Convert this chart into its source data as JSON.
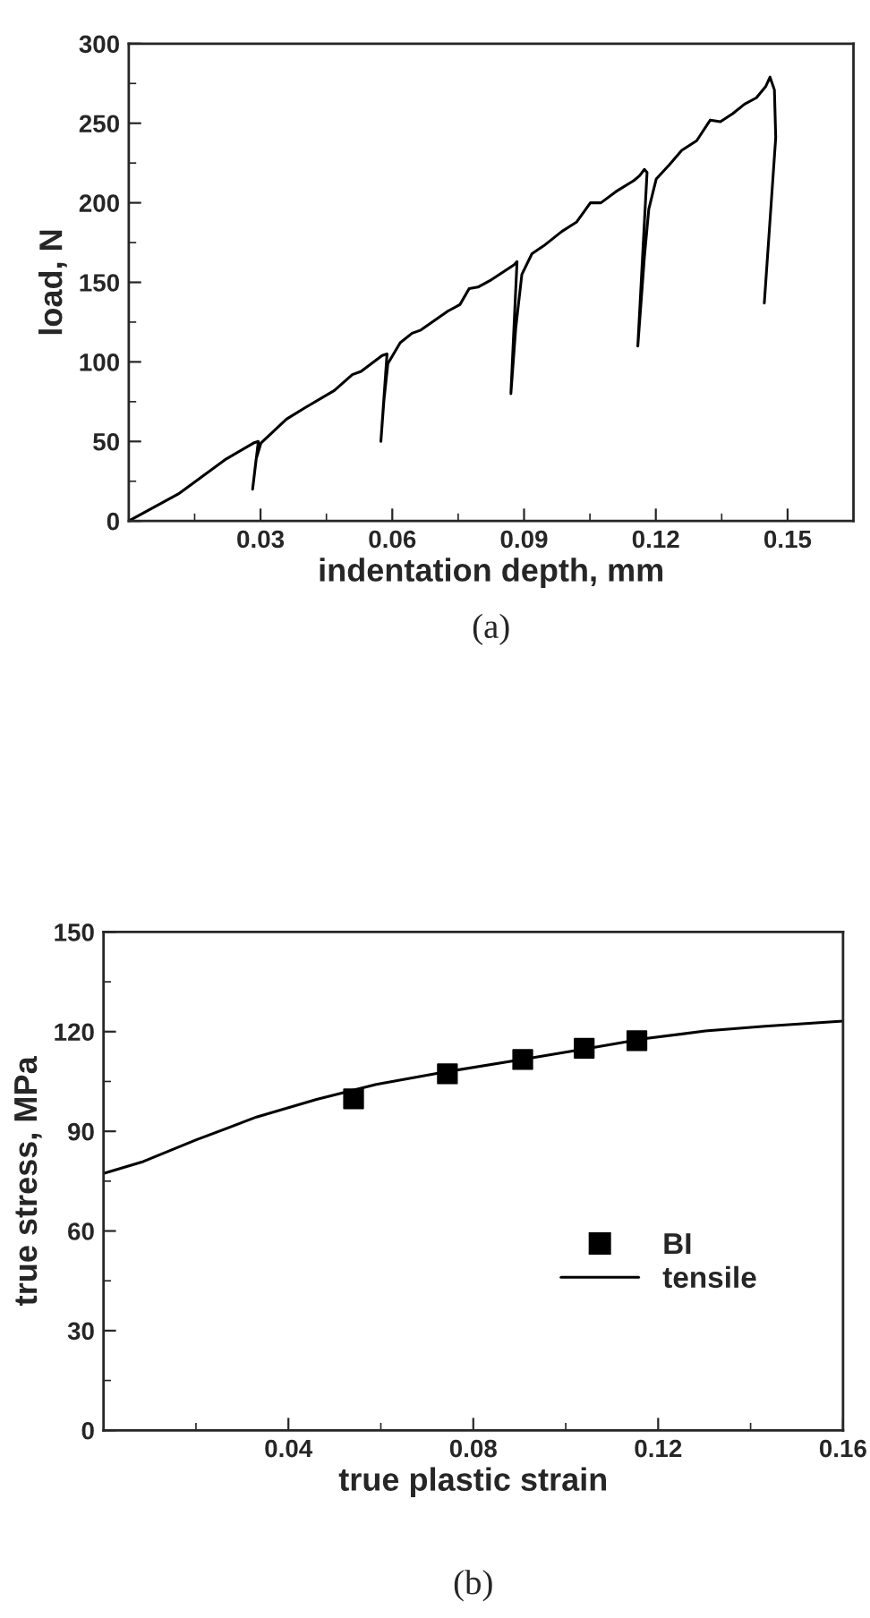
{
  "chart_data": [
    {
      "type": "line",
      "xlabel": "indentation depth, mm",
      "ylabel": "load, N",
      "annotations": [
        "(a)"
      ],
      "xlim": [
        0,
        0.165
      ],
      "ylim": [
        0,
        300
      ],
      "xticks": [
        {
          "value": 0.015,
          "label": null
        },
        0.03,
        {
          "value": 0.045,
          "label": null
        },
        0.06,
        {
          "value": 0.075,
          "label": null
        },
        0.09,
        {
          "value": 0.105,
          "label": null
        },
        0.12,
        {
          "value": 0.135,
          "label": null
        },
        0.15
      ],
      "yticks": [
        0,
        {
          "value": 25,
          "label": null
        },
        50,
        {
          "value": 75,
          "label": null
        },
        100,
        {
          "value": 125,
          "label": null
        },
        150,
        {
          "value": 175,
          "label": null
        },
        200,
        {
          "value": 225,
          "label": null
        },
        250,
        {
          "value": 275,
          "label": null
        },
        300
      ],
      "grid": false,
      "legend": false,
      "series": [
        {
          "color": "#000000",
          "line_style": "solid",
          "marker": "none",
          "x": [
            0,
            0.0113,
            0.0222,
            0.0284,
            0.0295,
            0.0282,
            0.029,
            0.0301,
            0.0359,
            0.04,
            0.0468,
            0.0509,
            0.0529,
            0.0577,
            0.0588,
            0.0574,
            0.0581,
            0.059,
            0.0618,
            0.0645,
            0.0665,
            0.0727,
            0.0754,
            0.0775,
            0.0795,
            0.0822,
            0.0877,
            0.0884,
            0.087,
            0.0881,
            0.0895,
            0.0918,
            0.0945,
            0.0986,
            0.102,
            0.1051,
            0.1075,
            0.1109,
            0.115,
            0.1163,
            0.1174,
            0.118,
            0.1159,
            0.1174,
            0.1184,
            0.1201,
            0.1231,
            0.1259,
            0.1293,
            0.1324,
            0.1347,
            0.1375,
            0.1402,
            0.1429,
            0.145,
            0.146,
            0.147,
            0.1473,
            0.1447
          ],
          "values": [
            0,
            17,
            39,
            49,
            50,
            20,
            39,
            49,
            64,
            71,
            82,
            92,
            94,
            104,
            105,
            50,
            76,
            99,
            112,
            118,
            120,
            132,
            136,
            146,
            147,
            151,
            161,
            163,
            80,
            121,
            155,
            168,
            173,
            182,
            188,
            200,
            200,
            207,
            214,
            217,
            221,
            219,
            110,
            166,
            196,
            215,
            224,
            233,
            239,
            252,
            251,
            256,
            262,
            266,
            273,
            279,
            271,
            241,
            137
          ]
        }
      ]
    },
    {
      "type": "line",
      "xlabel": "true plastic strain",
      "ylabel": "true stress, MPa",
      "annotations": [
        "(b)"
      ],
      "xlim": [
        0,
        0.16
      ],
      "ylim": [
        0,
        150
      ],
      "xticks": [
        {
          "value": 0.02,
          "label": null
        },
        0.04,
        {
          "value": 0.06,
          "label": null
        },
        0.08,
        {
          "value": 0.1,
          "label": null
        },
        0.12,
        {
          "value": 0.14,
          "label": null
        },
        0.16
      ],
      "yticks": [
        0,
        {
          "value": 15,
          "label": null
        },
        30,
        {
          "value": 45,
          "label": null
        },
        60,
        {
          "value": 75,
          "label": null
        },
        90,
        {
          "value": 105,
          "label": null
        },
        120,
        {
          "value": 135,
          "label": null
        },
        150
      ],
      "grid": false,
      "legend": "bottom right",
      "series": [
        {
          "name": "BI",
          "type": "scatter",
          "color": "#000000",
          "marker": "square",
          "x": [
            0.0541,
            0.0744,
            0.0907,
            0.104,
            0.1154
          ],
          "values": [
            99.8,
            107.3,
            111.6,
            115.0,
            117.3
          ]
        },
        {
          "name": "tensile",
          "color": "#000000",
          "line_style": "solid",
          "marker": "none",
          "x": [
            0,
            0.0086,
            0.0202,
            0.0331,
            0.0461,
            0.059,
            0.0745,
            0.0913,
            0.1043,
            0.1172,
            0.1302,
            0.1431,
            0.16
          ],
          "values": [
            77.3,
            80.9,
            87.5,
            94.3,
            99.6,
            104.1,
            108.0,
            111.8,
            114.8,
            117.9,
            120.2,
            121.6,
            123.2
          ]
        }
      ]
    }
  ]
}
